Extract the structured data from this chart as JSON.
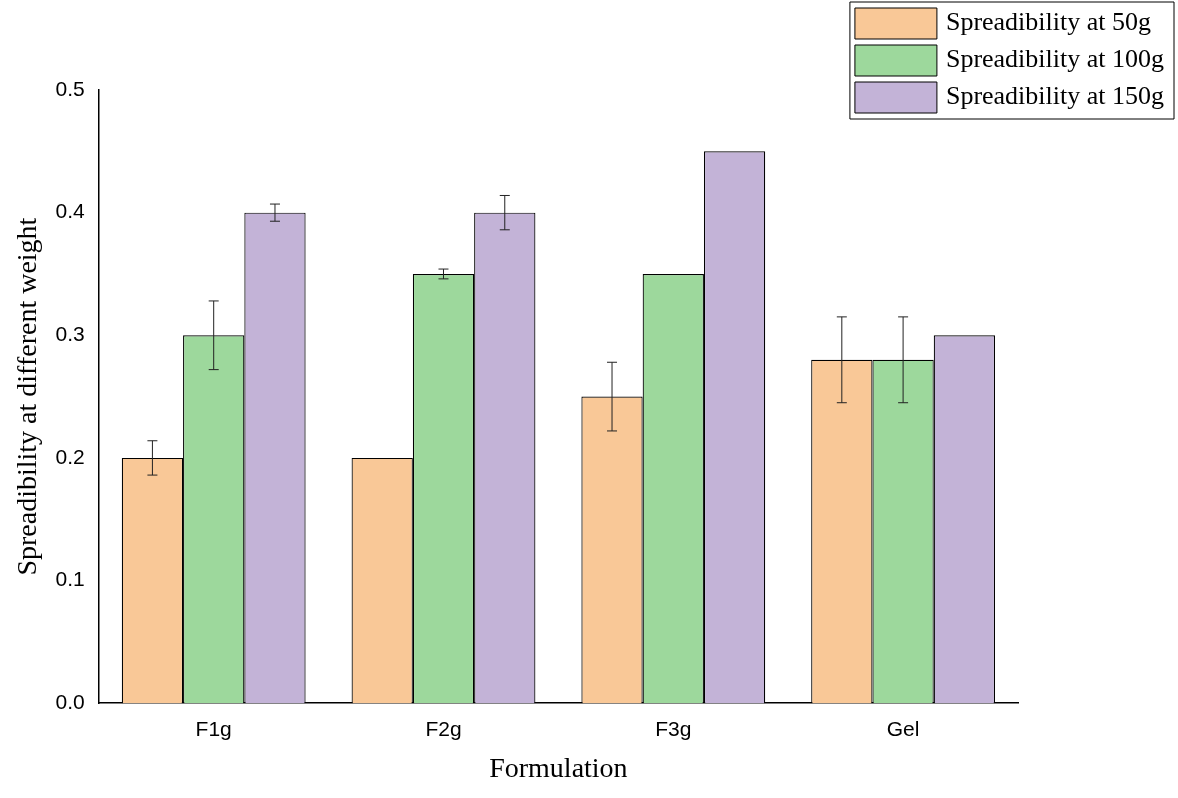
{
  "chart_data": {
    "type": "bar",
    "xlabel": "Formulation",
    "ylabel": "Spreadibility at different weight",
    "categories": [
      "F1g",
      "F2g",
      "F3g",
      "Gel"
    ],
    "series": [
      {
        "name": "Spreadibility at 50g",
        "color": "#f9c897",
        "values": [
          0.2,
          0.2,
          0.25,
          0.28
        ],
        "errors": [
          0.014,
          null,
          0.028,
          0.035
        ]
      },
      {
        "name": "Spreadibility at 100g",
        "color": "#9dd89c",
        "values": [
          0.3,
          0.35,
          0.35,
          0.28
        ],
        "errors": [
          0.028,
          0.004,
          null,
          0.035
        ]
      },
      {
        "name": "Spreadibility at 150g",
        "color": "#c3b3d7",
        "values": [
          0.4,
          0.4,
          0.45,
          0.3
        ],
        "errors": [
          0.007,
          0.014,
          null,
          null
        ]
      }
    ],
    "ylim": [
      0,
      0.5
    ],
    "yticks": [
      {
        "value": 0,
        "label": "0.0"
      },
      {
        "value": 0.1,
        "label": "0.1"
      },
      {
        "value": 0.2,
        "label": "0.2"
      },
      {
        "value": 0.3,
        "label": "0.3"
      },
      {
        "value": 0.4,
        "label": "0.4"
      },
      {
        "value": 0.5,
        "label": "0.5"
      }
    ],
    "grid": false,
    "legend": "top right"
  }
}
